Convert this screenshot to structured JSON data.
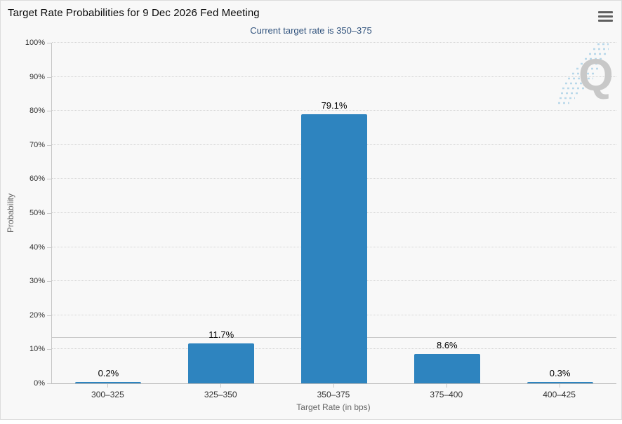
{
  "chart_data": {
    "type": "bar",
    "title": "Target Rate Probabilities for 9 Dec 2026 Fed Meeting",
    "subtitle": "Current target rate is 350–375",
    "categories": [
      "300–325",
      "325–350",
      "350–375",
      "375–400",
      "400–425"
    ],
    "values": [
      0.2,
      11.7,
      79.1,
      8.6,
      0.3
    ],
    "value_labels": [
      "0.2%",
      "11.7%",
      "79.1%",
      "8.6%",
      "0.3%"
    ],
    "xlabel": "Target Rate (in bps)",
    "ylabel": "Probability",
    "ylim": [
      0,
      100
    ],
    "ytick_step": 10,
    "ytick_labels": [
      "0%",
      "10%",
      "20%",
      "30%",
      "40%",
      "50%",
      "60%",
      "70%",
      "80%",
      "90%",
      "100%"
    ],
    "grid": "dotted horizontal gridlines, on",
    "legend": "none",
    "plotline_y": 13.4,
    "bar_color": "#2e84bf",
    "watermark_letter": "Q"
  },
  "colors": {
    "background": "#f8f8f8",
    "subtitle_text": "#31537d",
    "bar": "#2e84bf",
    "grid": "#d4d4d4",
    "axis_line": "#c6c6c6",
    "axis_label": "#333333",
    "axis_title": "#666666",
    "watermark": "#c8c8c8",
    "watermark_swoosh": "#b9d8ea"
  },
  "icons": {
    "menu": "hamburger-icon"
  }
}
